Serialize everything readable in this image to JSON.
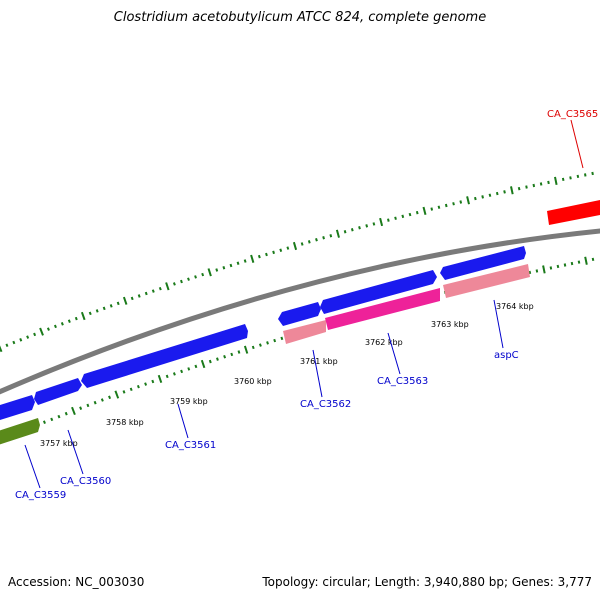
{
  "title": "Clostridium acetobutylicum ATCC 824, complete genome",
  "footer": {
    "accession": "Accession: NC_003030",
    "topology": "Topology: circular; Length: 3,940,880 bp; Genes: 3,777"
  },
  "scale_labels": [
    "3757 kbp",
    "3758 kbp",
    "3759 kbp",
    "3760 kbp",
    "3761 kbp",
    "3762 kbp",
    "3763 kbp",
    "3764 kbp"
  ],
  "genes": [
    {
      "label": "CA_C3559",
      "color": "#0000cc"
    },
    {
      "label": "CA_C3560",
      "color": "#0000cc"
    },
    {
      "label": "CA_C3561",
      "color": "#0000cc"
    },
    {
      "label": "CA_C3562",
      "color": "#0000cc"
    },
    {
      "label": "CA_C3563",
      "color": "#0000cc"
    },
    {
      "label": "aspC",
      "color": "#0000cc"
    },
    {
      "label": "CA_C3565",
      "color": "#dd0000"
    }
  ],
  "colors": {
    "backbone": "#808080",
    "forward_cds": "#1a1aee",
    "reverse_cds": "#ee88aa",
    "highlight_cds": "#ee2299",
    "rna": "#5a8a1a",
    "outer_feature": "#ff0000",
    "ticks": "#1a7a1a"
  }
}
